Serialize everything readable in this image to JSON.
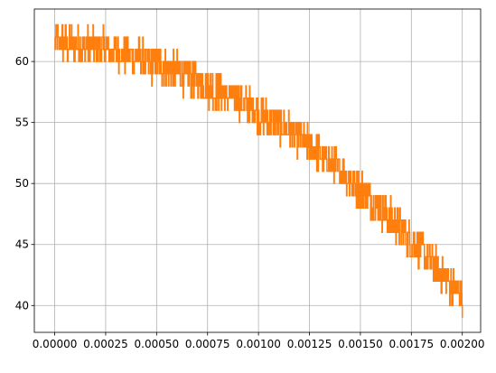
{
  "chart_data": {
    "type": "line",
    "title": "",
    "xlabel": "",
    "ylabel": "",
    "xlim": [
      -0.0001,
      0.00209
    ],
    "ylim": [
      37.8,
      64.3
    ],
    "grid": true,
    "x_ticks": [
      {
        "value": 0.0,
        "label": "0.00000"
      },
      {
        "value": 0.00025,
        "label": "0.00025"
      },
      {
        "value": 0.0005,
        "label": "0.00050"
      },
      {
        "value": 0.00075,
        "label": "0.00075"
      },
      {
        "value": 0.001,
        "label": "0.00100"
      },
      {
        "value": 0.00125,
        "label": "0.00125"
      },
      {
        "value": 0.0015,
        "label": "0.00150"
      },
      {
        "value": 0.00175,
        "label": "0.00175"
      },
      {
        "value": 0.002,
        "label": "0.00200"
      }
    ],
    "y_ticks": [
      {
        "value": 40,
        "label": "40"
      },
      {
        "value": 45,
        "label": "45"
      },
      {
        "value": 50,
        "label": "50"
      },
      {
        "value": 55,
        "label": "55"
      },
      {
        "value": 60,
        "label": "60"
      }
    ],
    "series": [
      {
        "color": "#ff7f0e",
        "noise_band": 1.5,
        "trend": {
          "x": [
            0.0,
            5e-05,
            0.0001,
            0.00015,
            0.0002,
            0.00025,
            0.0003,
            0.00035,
            0.0004,
            0.00045,
            0.0005,
            0.00055,
            0.0006,
            0.00065,
            0.0007,
            0.00075,
            0.0008,
            0.00085,
            0.0009,
            0.00095,
            0.001,
            0.00105,
            0.0011,
            0.00115,
            0.0012,
            0.00125,
            0.0013,
            0.00135,
            0.0014,
            0.00145,
            0.0015,
            0.00155,
            0.0016,
            0.00165,
            0.0017,
            0.00175,
            0.0018,
            0.00185,
            0.0019,
            0.00195,
            0.002
          ],
          "y": [
            61.5,
            61.5,
            61.4,
            61.3,
            61.2,
            61.0,
            60.8,
            60.6,
            60.3,
            60.0,
            59.8,
            59.5,
            59.1,
            58.8,
            58.4,
            58.0,
            57.6,
            57.2,
            56.8,
            56.3,
            55.8,
            55.3,
            54.8,
            54.2,
            53.6,
            53.0,
            52.4,
            51.7,
            51.0,
            50.3,
            49.5,
            48.7,
            47.9,
            47.1,
            46.2,
            45.3,
            44.4,
            43.5,
            42.5,
            41.6,
            40.7
          ]
        },
        "end_point": {
          "x": 0.002,
          "y": 39
        }
      }
    ]
  }
}
